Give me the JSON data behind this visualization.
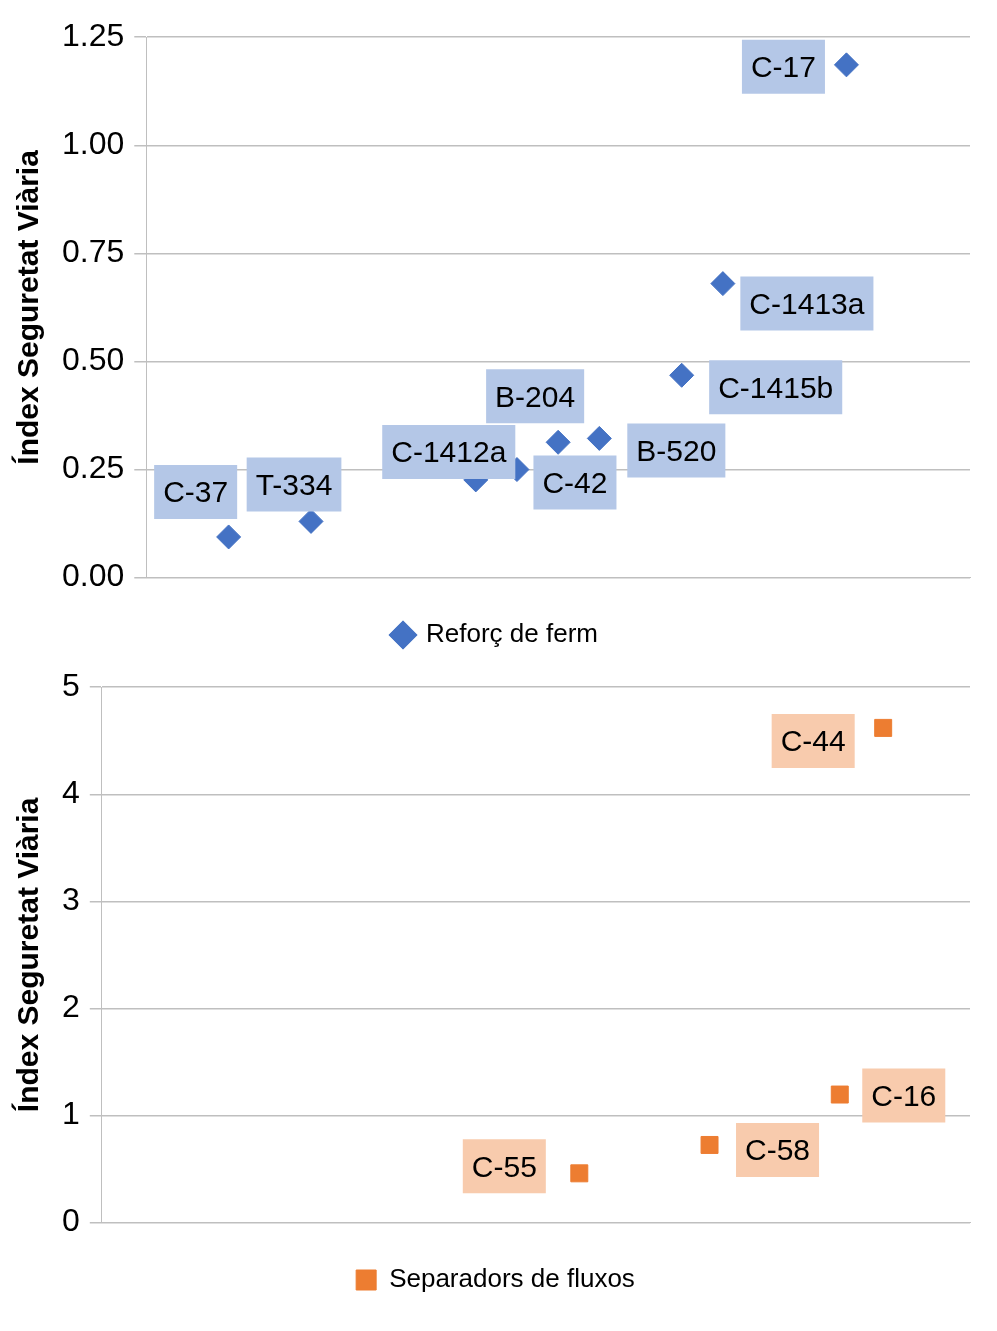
{
  "chart_data": [
    {
      "type": "scatter",
      "ylabel": "Índex Seguretat Viària",
      "categories": [
        null,
        null,
        null,
        null,
        null,
        null,
        null,
        null,
        null,
        null,
        null,
        null,
        null,
        null,
        null,
        null,
        null,
        null,
        null,
        null,
        null
      ],
      "ylim": [
        0,
        1.25
      ],
      "yticks": [
        {
          "value": 0,
          "label": "0.00"
        },
        {
          "value": 0.25,
          "label": "0.25"
        },
        {
          "value": 0.5,
          "label": "0.50"
        },
        {
          "value": 0.75,
          "label": "0.75"
        },
        {
          "value": 1,
          "label": "1.00"
        },
        {
          "value": 1.25,
          "label": "1.25"
        }
      ],
      "grid": "y",
      "legend": "bottom",
      "marker": "diamond",
      "series": [
        {
          "name": "Reforç de ferm",
          "color": "#4472c4",
          "values": [
            null,
            null,
            0.094,
            null,
            0.13,
            null,
            null,
            null,
            0.226,
            0.25,
            0.313,
            0.322,
            null,
            0.468,
            0.68,
            null,
            null,
            1.186,
            null,
            null,
            null
          ],
          "value_labels": [
            null,
            null,
            "C-37",
            null,
            "T-334",
            null,
            null,
            null,
            "C-1412a",
            "C-42",
            "B-204",
            "B-520",
            null,
            "C-1415b",
            "C-1413a",
            null,
            null,
            "C-17",
            null,
            null,
            null
          ]
        }
      ]
    },
    {
      "type": "scatter",
      "ylabel": "Índex Seguretat Viària",
      "categories": [
        null,
        null,
        null,
        null,
        null,
        null,
        null,
        null,
        null,
        null,
        null,
        null,
        null,
        null,
        null,
        null,
        null,
        null,
        null,
        null,
        null
      ],
      "ylim": [
        0,
        5
      ],
      "yticks": [
        0,
        1,
        2,
        3,
        4,
        5
      ],
      "grid": "y",
      "legend": "bottom",
      "marker": "square",
      "series": [
        {
          "name": "Separadors de fluxos",
          "color": "#ed7d31",
          "values": [
            null,
            null,
            null,
            null,
            null,
            null,
            null,
            null,
            null,
            null,
            null,
            0.46,
            null,
            null,
            0.725,
            null,
            null,
            1.196,
            4.62,
            null,
            null
          ],
          "value_labels": [
            null,
            null,
            null,
            null,
            null,
            null,
            null,
            null,
            null,
            null,
            null,
            "C-55",
            null,
            null,
            "C-58",
            null,
            null,
            "C-16",
            "C-44",
            null,
            null
          ]
        }
      ]
    }
  ]
}
